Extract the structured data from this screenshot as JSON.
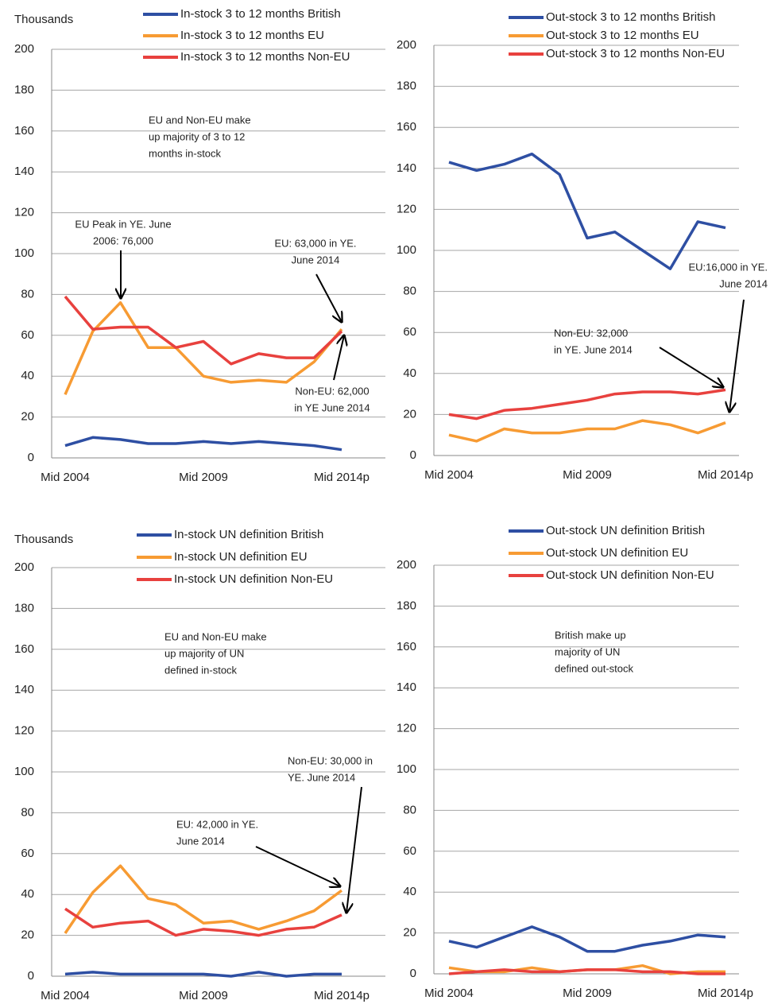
{
  "chart_data": [
    {
      "type": "line",
      "y_label": "Thousands",
      "categories": [
        "Mid 2004",
        null,
        null,
        null,
        null,
        "Mid 2009",
        null,
        null,
        null,
        null,
        "Mid 2014p"
      ],
      "ylim": [
        0,
        200
      ],
      "yticks": [
        0,
        20,
        40,
        60,
        80,
        100,
        120,
        140,
        160,
        180,
        200
      ],
      "grid": true,
      "series": [
        {
          "name": "In-stock 3 to 12 months British",
          "color": "#2e4fa3",
          "values": [
            6,
            10,
            9,
            7,
            7,
            8,
            7,
            8,
            7,
            6,
            4
          ]
        },
        {
          "name": "In-stock 3 to 12 months EU",
          "color": "#f79b33",
          "values": [
            31,
            62,
            76,
            54,
            54,
            40,
            37,
            38,
            37,
            47,
            63
          ]
        },
        {
          "name": "In-stock 3 to 12 months Non-EU",
          "color": "#e8413e",
          "values": [
            79,
            63,
            64,
            64,
            54,
            57,
            46,
            51,
            49,
            49,
            62
          ]
        }
      ],
      "annotations": [
        [
          "EU and Non-EU make",
          "up majority of 3 to 12",
          "months in-stock"
        ],
        [
          "EU Peak in YE. June",
          "2006: 76,000"
        ],
        [
          "EU: 63,000 in YE.",
          "June 2014"
        ],
        [
          "Non-EU: 62,000",
          "in YE June 2014"
        ]
      ]
    },
    {
      "type": "line",
      "categories": [
        "Mid 2004",
        null,
        null,
        null,
        null,
        "Mid 2009",
        null,
        null,
        null,
        null,
        "Mid 2014p"
      ],
      "ylim": [
        0,
        200
      ],
      "yticks": [
        0,
        20,
        40,
        60,
        80,
        100,
        120,
        140,
        160,
        180,
        200
      ],
      "grid": true,
      "series": [
        {
          "name": "Out-stock 3 to 12 months British",
          "color": "#2e4fa3",
          "values": [
            143,
            139,
            142,
            147,
            137,
            106,
            109,
            100,
            91,
            114,
            111
          ]
        },
        {
          "name": "Out-stock 3 to 12 months EU",
          "color": "#f79b33",
          "values": [
            10,
            7,
            13,
            11,
            11,
            13,
            13,
            17,
            15,
            11,
            16
          ]
        },
        {
          "name": "Out-stock 3 to 12 months Non-EU",
          "color": "#e8413e",
          "values": [
            20,
            18,
            22,
            23,
            25,
            27,
            30,
            31,
            31,
            30,
            32
          ]
        }
      ],
      "annotations": [
        [
          "EU:16,000 in YE.",
          "June 2014"
        ],
        [
          "Non-EU: 32,000",
          "in YE. June 2014"
        ]
      ]
    },
    {
      "type": "line",
      "y_label": "Thousands",
      "categories": [
        "Mid 2004",
        null,
        null,
        null,
        null,
        "Mid 2009",
        null,
        null,
        null,
        null,
        "Mid 2014p"
      ],
      "ylim": [
        0,
        200
      ],
      "yticks": [
        0,
        20,
        40,
        60,
        80,
        100,
        120,
        140,
        160,
        180,
        200
      ],
      "grid": true,
      "series": [
        {
          "name": "In-stock UN definition British",
          "color": "#2e4fa3",
          "values": [
            1,
            2,
            1,
            1,
            1,
            1,
            0,
            2,
            0,
            1,
            1
          ]
        },
        {
          "name": "In-stock UN definition EU",
          "color": "#f79b33",
          "values": [
            21,
            41,
            54,
            38,
            35,
            26,
            27,
            23,
            27,
            32,
            42
          ]
        },
        {
          "name": "In-stock UN definition Non-EU",
          "color": "#e8413e",
          "values": [
            33,
            24,
            26,
            27,
            20,
            23,
            22,
            20,
            23,
            24,
            30
          ]
        }
      ],
      "annotations": [
        [
          "EU and Non-EU make",
          "up majority of UN",
          "defined in-stock"
        ],
        [
          "Non-EU: 30,000 in",
          "YE. June 2014"
        ],
        [
          "EU: 42,000 in YE.",
          "June 2014"
        ]
      ]
    },
    {
      "type": "line",
      "categories": [
        "Mid 2004",
        null,
        null,
        null,
        null,
        "Mid 2009",
        null,
        null,
        null,
        null,
        "Mid 2014p"
      ],
      "ylim": [
        0,
        200
      ],
      "yticks": [
        0,
        20,
        40,
        60,
        80,
        100,
        120,
        140,
        160,
        180,
        200
      ],
      "grid": true,
      "series": [
        {
          "name": "Out-stock UN definition British",
          "color": "#2e4fa3",
          "values": [
            16,
            13,
            18,
            23,
            18,
            11,
            11,
            14,
            16,
            19,
            18
          ]
        },
        {
          "name": "Out-stock UN definition EU",
          "color": "#f79b33",
          "values": [
            3,
            1,
            1,
            3,
            1,
            2,
            2,
            4,
            0,
            1,
            1
          ]
        },
        {
          "name": "Out-stock UN definition Non-EU",
          "color": "#e8413e",
          "values": [
            0,
            1,
            2,
            1,
            1,
            2,
            2,
            1,
            1,
            0,
            0
          ]
        }
      ],
      "annotations": [
        [
          "British make up",
          "majority of UN",
          "defined out-stock"
        ]
      ]
    }
  ]
}
